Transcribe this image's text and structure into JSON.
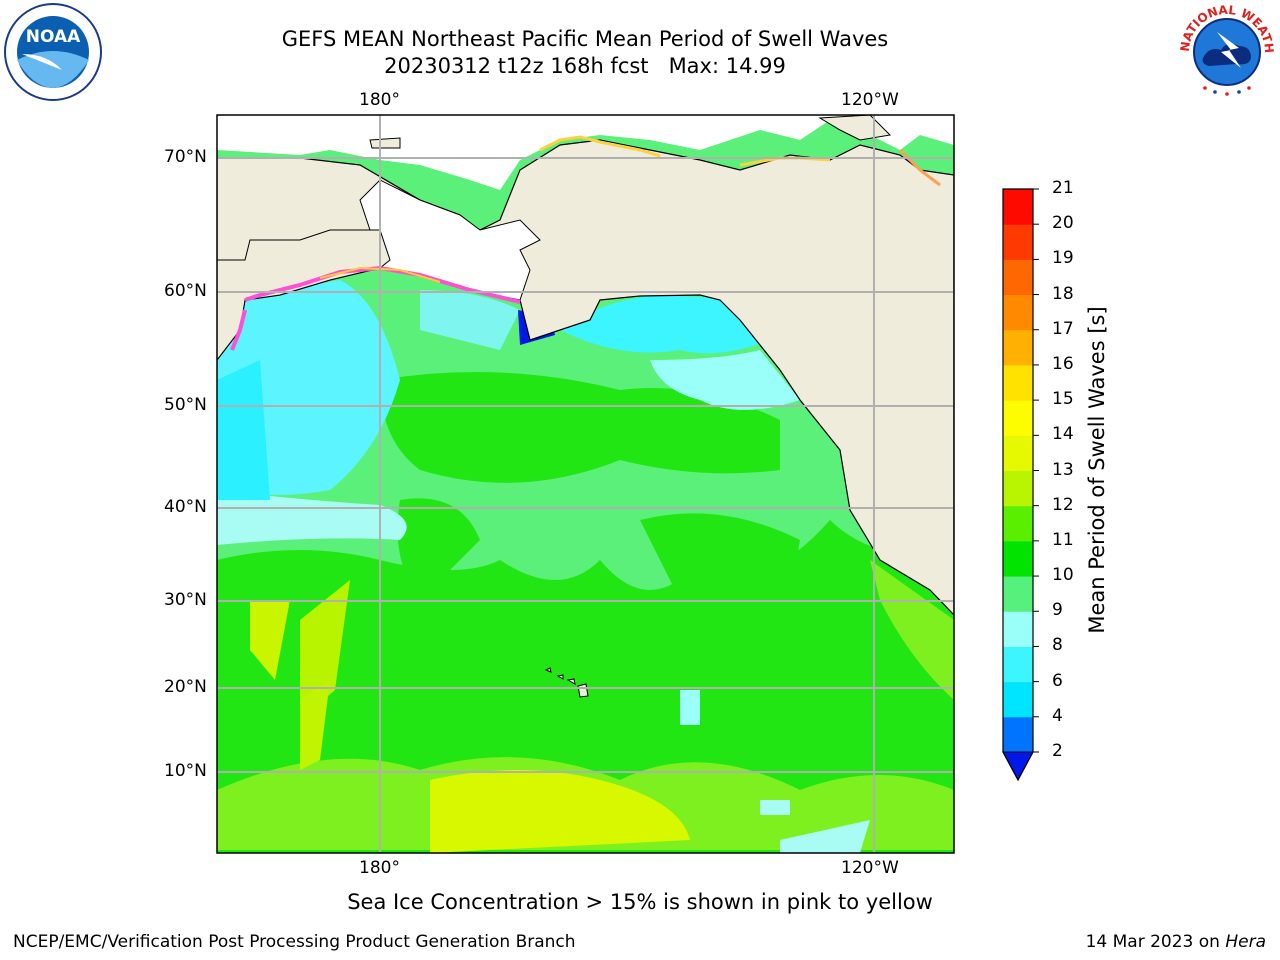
{
  "title_line1": "GEFS MEAN Northeast Pacific Mean Period of Swell Waves",
  "title_line2": "20230312 t12z 168h fcst   Max: 14.99",
  "logos": {
    "left": "noaa-logo",
    "left_text": "NOAA",
    "right": "national-weather-service-logo",
    "right_text": "NATIONAL WEATHER SERVICE"
  },
  "map": {
    "lon_labels_top": [
      "180°",
      "120°W"
    ],
    "lon_labels_bottom": [
      "180°",
      "120°W"
    ],
    "lat_labels": [
      "70°N",
      "60°N",
      "50°N",
      "40°N",
      "30°N",
      "20°N",
      "10°N"
    ],
    "land_color": "#efecdc",
    "ocean_base_color": "#5bf07a"
  },
  "colorbar": {
    "label": "Mean Period of Swell Waves [s]",
    "ticks": [
      "21",
      "20",
      "19",
      "18",
      "17",
      "16",
      "15",
      "14",
      "13",
      "12",
      "11",
      "10",
      "9",
      "8",
      "6",
      "4",
      "2"
    ],
    "colors_bottom_to_top": [
      "#0073ff",
      "#00e5ff",
      "#3cf5ff",
      "#9bfff9",
      "#56f07c",
      "#00e400",
      "#5aee00",
      "#b9f500",
      "#e6f900",
      "#fdfd00",
      "#ffe200",
      "#ffb000",
      "#ff8a00",
      "#ff6800",
      "#ff3a00",
      "#ff0a00"
    ],
    "under_color": "#0018e8"
  },
  "footer_note": "Sea Ice Concentration > 15% is shown in pink to yellow",
  "footer_left": "NCEP/EMC/Verification Post Processing Product Generation Branch",
  "footer_right_date": "14 Mar 2023 on ",
  "footer_right_host": "Hera"
}
